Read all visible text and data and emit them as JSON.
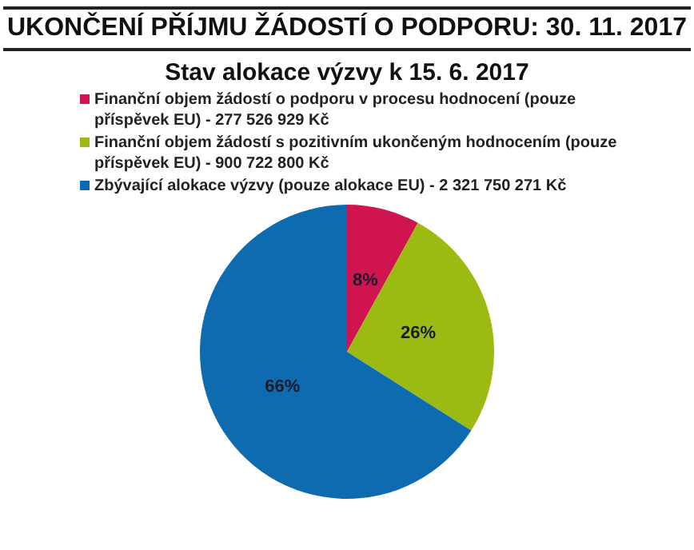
{
  "chart_data": {
    "type": "pie",
    "title": "UKONČENÍ PŘÍJMU ŽÁDOSTÍ O PODPORU: 30. 11. 2017",
    "subtitle": "Stav alokace výzvy k 15. 6. 2017",
    "categories": [
      "Finanční objem žádostí o podporu v procesu hodnocení (pouze  příspěvek EU) - 277 526 929 Kč",
      "Finanční objem žádostí s pozitivním ukončeným hodnocením (pouze příspěvek EU) - 900 722 800 Kč",
      "Zbývající alokace výzvy (pouze alokace EU) - 2 321 750 271 Kč"
    ],
    "values": [
      8,
      26,
      66
    ],
    "colors": [
      "#d0144f",
      "#9bbb12",
      "#0f6bb0"
    ],
    "value_labels": [
      "8%",
      "26%",
      "66%"
    ],
    "legend": "top"
  }
}
